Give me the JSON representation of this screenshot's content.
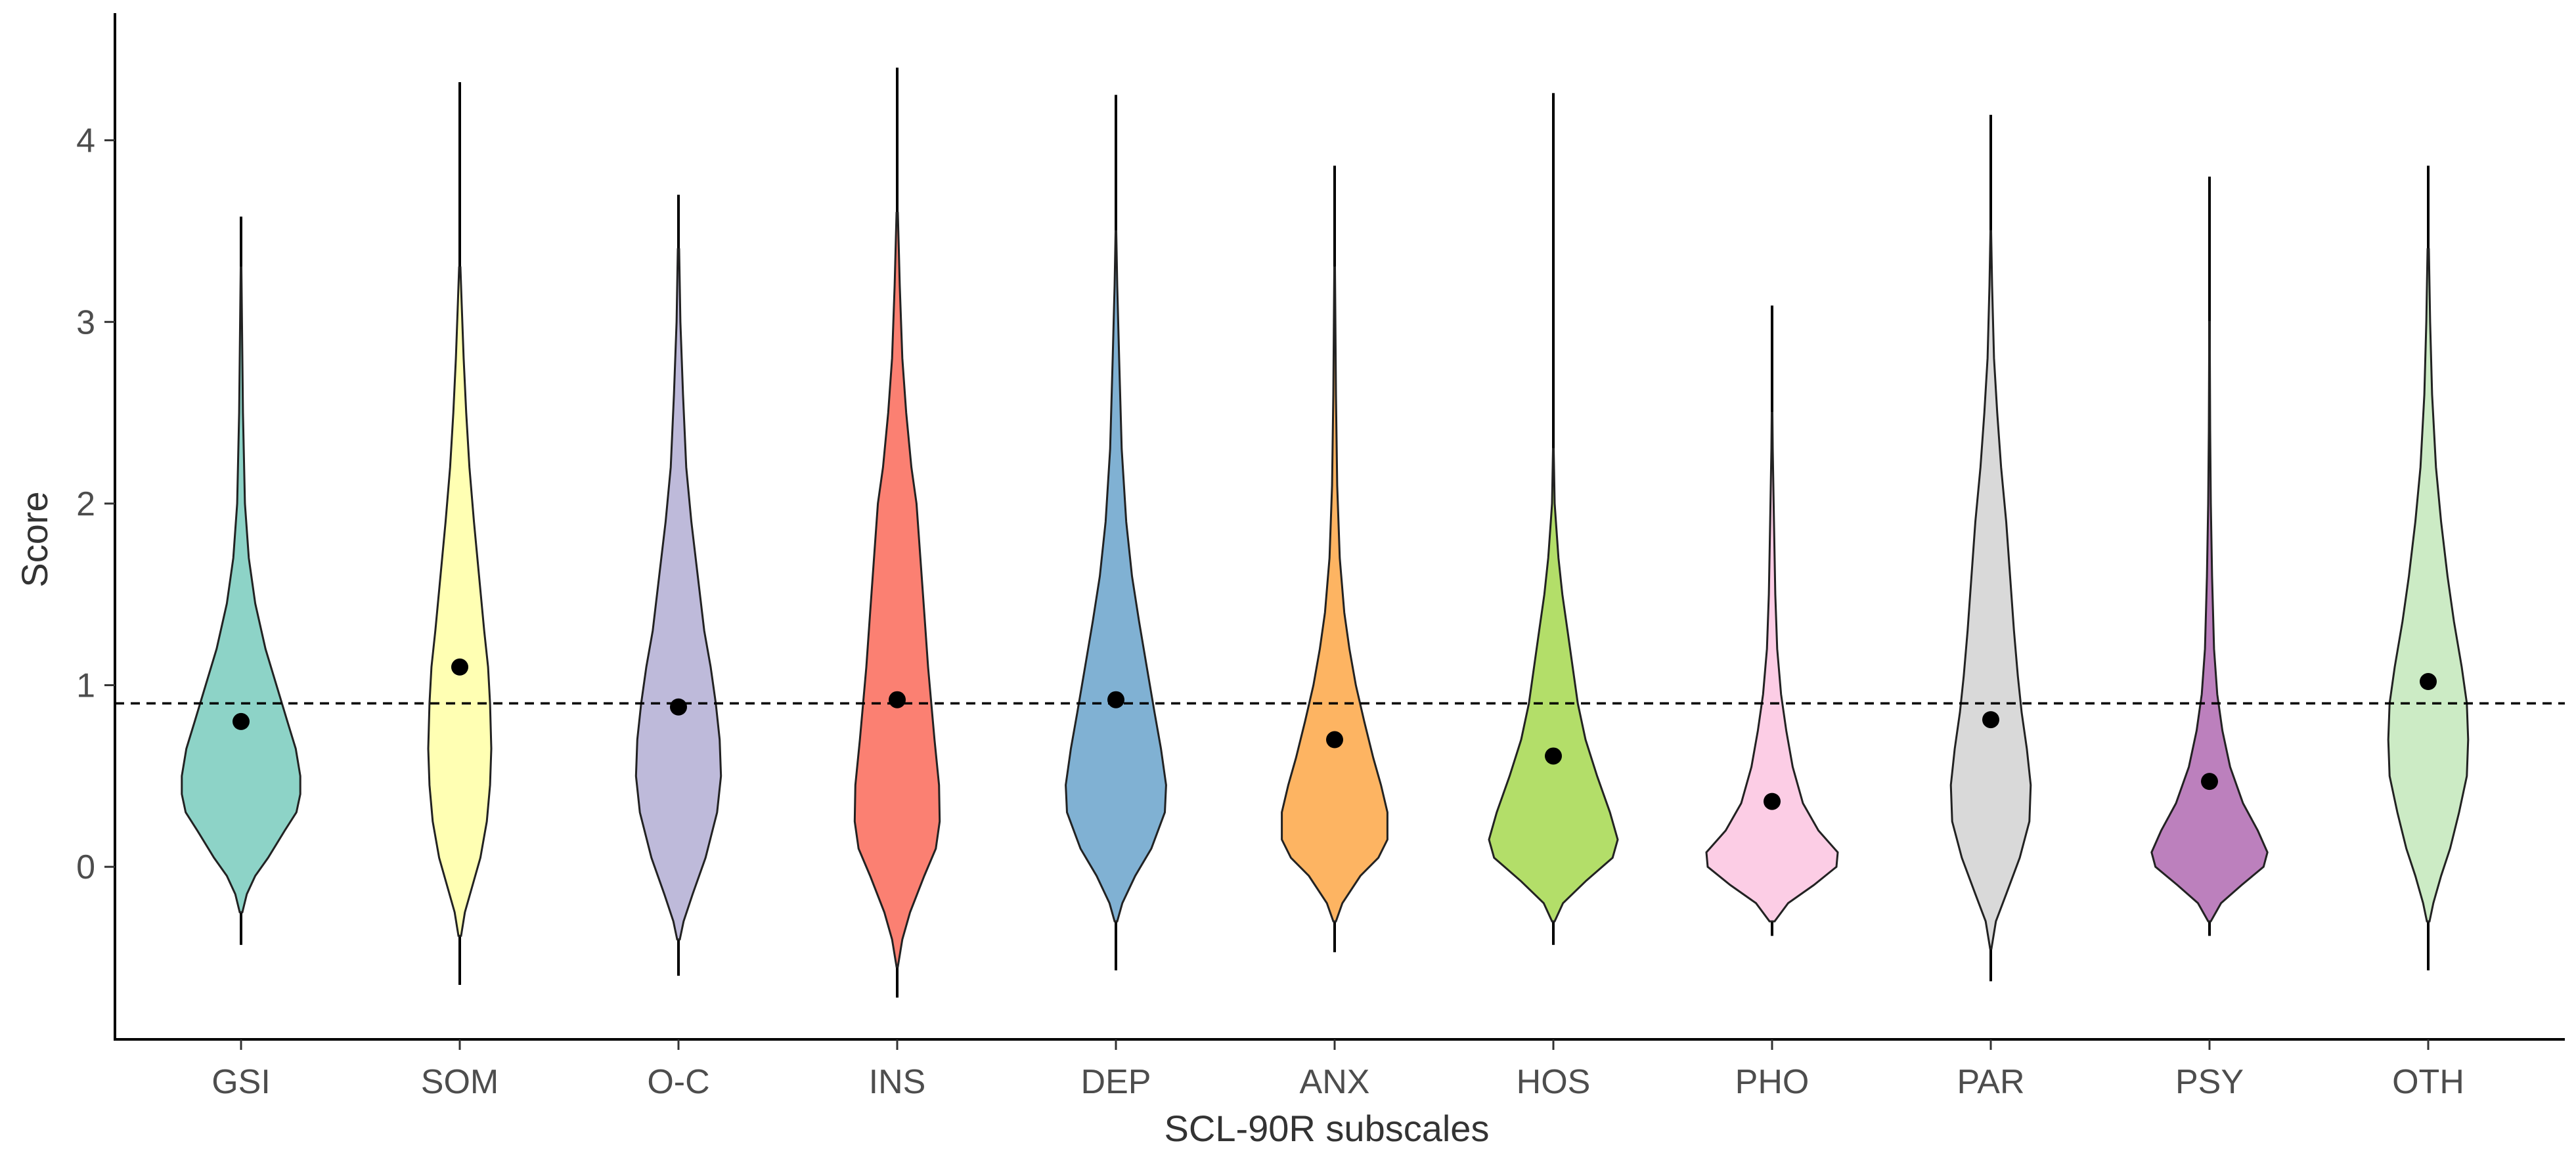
{
  "chart_data": {
    "type": "violin",
    "title": "",
    "xlabel": "SCL-90R subscales",
    "ylabel": "Score",
    "ylim": [
      -0.95,
      4.7
    ],
    "y_ticks": [
      0,
      1,
      2,
      3,
      4
    ],
    "y_tick_labels": [
      "0",
      "1",
      "2",
      "3",
      "4"
    ],
    "reference_line": {
      "y": 0.9,
      "style": "dashed"
    },
    "grid": false,
    "categories": [
      "GSI",
      "SOM",
      "O-C",
      "INS",
      "DEP",
      "ANX",
      "HOS",
      "PHO",
      "PAR",
      "PSY",
      "OTH"
    ],
    "series": [
      {
        "name": "GSI",
        "color": "#8DD3C7",
        "mean": 0.8,
        "min": -0.43,
        "max": 3.58,
        "profile": [
          [
            -0.25,
            0.02
          ],
          [
            -0.15,
            0.09
          ],
          [
            -0.05,
            0.22
          ],
          [
            0.05,
            0.42
          ],
          [
            0.2,
            0.68
          ],
          [
            0.3,
            0.86
          ],
          [
            0.4,
            0.92
          ],
          [
            0.5,
            0.92
          ],
          [
            0.65,
            0.85
          ],
          [
            0.8,
            0.72
          ],
          [
            1.0,
            0.55
          ],
          [
            1.2,
            0.38
          ],
          [
            1.45,
            0.22
          ],
          [
            1.7,
            0.12
          ],
          [
            2.0,
            0.06
          ],
          [
            2.5,
            0.03
          ],
          [
            2.8,
            0.02
          ],
          [
            3.3,
            0.005
          ]
        ]
      },
      {
        "name": "SOM",
        "color": "#FFFFB3",
        "mean": 1.1,
        "min": -0.65,
        "max": 4.32,
        "profile": [
          [
            -0.38,
            0.02
          ],
          [
            -0.25,
            0.08
          ],
          [
            -0.1,
            0.2
          ],
          [
            0.05,
            0.32
          ],
          [
            0.25,
            0.42
          ],
          [
            0.45,
            0.47
          ],
          [
            0.65,
            0.49
          ],
          [
            0.9,
            0.47
          ],
          [
            1.1,
            0.44
          ],
          [
            1.3,
            0.38
          ],
          [
            1.6,
            0.3
          ],
          [
            1.9,
            0.22
          ],
          [
            2.2,
            0.15
          ],
          [
            2.5,
            0.1
          ],
          [
            2.8,
            0.06
          ],
          [
            3.1,
            0.03
          ],
          [
            3.3,
            0.01
          ]
        ]
      },
      {
        "name": "O-C",
        "color": "#BEBADA",
        "mean": 0.88,
        "min": -0.6,
        "max": 3.7,
        "profile": [
          [
            -0.4,
            0.02
          ],
          [
            -0.3,
            0.08
          ],
          [
            -0.15,
            0.22
          ],
          [
            0.05,
            0.42
          ],
          [
            0.3,
            0.6
          ],
          [
            0.5,
            0.66
          ],
          [
            0.7,
            0.64
          ],
          [
            0.9,
            0.58
          ],
          [
            1.1,
            0.5
          ],
          [
            1.3,
            0.4
          ],
          [
            1.6,
            0.3
          ],
          [
            1.9,
            0.2
          ],
          [
            2.2,
            0.12
          ],
          [
            2.6,
            0.07
          ],
          [
            3.0,
            0.03
          ],
          [
            3.4,
            0.01
          ]
        ]
      },
      {
        "name": "INS",
        "color": "#FB8072",
        "mean": 0.92,
        "min": -0.72,
        "max": 4.4,
        "profile": [
          [
            -0.55,
            0.01
          ],
          [
            -0.4,
            0.08
          ],
          [
            -0.25,
            0.2
          ],
          [
            -0.05,
            0.42
          ],
          [
            0.1,
            0.6
          ],
          [
            0.25,
            0.66
          ],
          [
            0.45,
            0.65
          ],
          [
            0.7,
            0.58
          ],
          [
            0.9,
            0.53
          ],
          [
            1.1,
            0.48
          ],
          [
            1.4,
            0.42
          ],
          [
            1.7,
            0.36
          ],
          [
            2.0,
            0.3
          ],
          [
            2.2,
            0.22
          ],
          [
            2.5,
            0.14
          ],
          [
            2.8,
            0.08
          ],
          [
            3.2,
            0.04
          ],
          [
            3.6,
            0.01
          ]
        ]
      },
      {
        "name": "DEP",
        "color": "#80B1D3",
        "mean": 0.92,
        "min": -0.57,
        "max": 4.25,
        "profile": [
          [
            -0.3,
            0.02
          ],
          [
            -0.2,
            0.1
          ],
          [
            -0.05,
            0.3
          ],
          [
            0.1,
            0.55
          ],
          [
            0.3,
            0.76
          ],
          [
            0.45,
            0.78
          ],
          [
            0.65,
            0.7
          ],
          [
            0.85,
            0.6
          ],
          [
            1.1,
            0.48
          ],
          [
            1.35,
            0.36
          ],
          [
            1.6,
            0.25
          ],
          [
            1.9,
            0.16
          ],
          [
            2.3,
            0.09
          ],
          [
            2.8,
            0.05
          ],
          [
            3.2,
            0.02
          ],
          [
            3.5,
            0.005
          ]
        ]
      },
      {
        "name": "ANX",
        "color": "#FDB462",
        "mean": 0.7,
        "min": -0.47,
        "max": 3.86,
        "profile": [
          [
            -0.3,
            0.02
          ],
          [
            -0.2,
            0.12
          ],
          [
            -0.05,
            0.4
          ],
          [
            0.05,
            0.68
          ],
          [
            0.15,
            0.82
          ],
          [
            0.3,
            0.82
          ],
          [
            0.45,
            0.72
          ],
          [
            0.6,
            0.6
          ],
          [
            0.8,
            0.46
          ],
          [
            1.0,
            0.33
          ],
          [
            1.2,
            0.23
          ],
          [
            1.4,
            0.15
          ],
          [
            1.7,
            0.08
          ],
          [
            2.1,
            0.04
          ],
          [
            2.6,
            0.02
          ],
          [
            3.3,
            0.005
          ]
        ]
      },
      {
        "name": "HOS",
        "color": "#B3DE69",
        "mean": 0.61,
        "min": -0.43,
        "max": 4.26,
        "profile": [
          [
            -0.3,
            0.02
          ],
          [
            -0.2,
            0.15
          ],
          [
            -0.08,
            0.5
          ],
          [
            0.05,
            0.92
          ],
          [
            0.15,
            1.0
          ],
          [
            0.3,
            0.88
          ],
          [
            0.5,
            0.68
          ],
          [
            0.7,
            0.5
          ],
          [
            0.9,
            0.38
          ],
          [
            1.1,
            0.3
          ],
          [
            1.3,
            0.22
          ],
          [
            1.5,
            0.14
          ],
          [
            1.7,
            0.08
          ],
          [
            1.9,
            0.04
          ],
          [
            2.0,
            0.02
          ],
          [
            2.3,
            0.005
          ]
        ]
      },
      {
        "name": "PHO",
        "color": "#FCCDE5",
        "mean": 0.36,
        "min": -0.38,
        "max": 3.09,
        "profile": [
          [
            -0.3,
            0.04
          ],
          [
            -0.2,
            0.25
          ],
          [
            -0.1,
            0.65
          ],
          [
            0.0,
            1.0
          ],
          [
            0.08,
            1.02
          ],
          [
            0.2,
            0.72
          ],
          [
            0.35,
            0.48
          ],
          [
            0.55,
            0.32
          ],
          [
            0.75,
            0.22
          ],
          [
            0.95,
            0.14
          ],
          [
            1.2,
            0.08
          ],
          [
            1.5,
            0.05
          ],
          [
            1.9,
            0.03
          ],
          [
            2.3,
            0.01
          ],
          [
            2.5,
            0.005
          ]
        ]
      },
      {
        "name": "PAR",
        "color": "#D9D9D9",
        "mean": 0.81,
        "min": -0.63,
        "max": 4.14,
        "profile": [
          [
            -0.45,
            0.01
          ],
          [
            -0.3,
            0.08
          ],
          [
            -0.15,
            0.24
          ],
          [
            0.05,
            0.45
          ],
          [
            0.25,
            0.6
          ],
          [
            0.45,
            0.62
          ],
          [
            0.65,
            0.56
          ],
          [
            0.85,
            0.48
          ],
          [
            1.05,
            0.42
          ],
          [
            1.3,
            0.36
          ],
          [
            1.6,
            0.3
          ],
          [
            1.9,
            0.24
          ],
          [
            2.2,
            0.16
          ],
          [
            2.5,
            0.1
          ],
          [
            2.8,
            0.05
          ],
          [
            3.2,
            0.02
          ],
          [
            3.5,
            0.005
          ]
        ]
      },
      {
        "name": "PSY",
        "color": "#BC80BD",
        "mean": 0.47,
        "min": -0.38,
        "max": 3.8,
        "profile": [
          [
            -0.3,
            0.02
          ],
          [
            -0.2,
            0.18
          ],
          [
            -0.1,
            0.5
          ],
          [
            0.0,
            0.84
          ],
          [
            0.08,
            0.9
          ],
          [
            0.2,
            0.75
          ],
          [
            0.35,
            0.52
          ],
          [
            0.55,
            0.32
          ],
          [
            0.75,
            0.2
          ],
          [
            0.95,
            0.12
          ],
          [
            1.2,
            0.07
          ],
          [
            1.6,
            0.04
          ],
          [
            2.0,
            0.02
          ],
          [
            2.4,
            0.01
          ],
          [
            3.0,
            0.003
          ]
        ]
      },
      {
        "name": "OTH",
        "color": "#CCEBC5",
        "mean": 1.02,
        "min": -0.57,
        "max": 3.86,
        "profile": [
          [
            -0.3,
            0.02
          ],
          [
            -0.2,
            0.08
          ],
          [
            -0.05,
            0.2
          ],
          [
            0.1,
            0.34
          ],
          [
            0.3,
            0.48
          ],
          [
            0.5,
            0.6
          ],
          [
            0.7,
            0.62
          ],
          [
            0.9,
            0.6
          ],
          [
            1.1,
            0.52
          ],
          [
            1.35,
            0.4
          ],
          [
            1.6,
            0.3
          ],
          [
            1.9,
            0.2
          ],
          [
            2.2,
            0.12
          ],
          [
            2.6,
            0.06
          ],
          [
            3.0,
            0.03
          ],
          [
            3.4,
            0.01
          ]
        ]
      }
    ]
  }
}
